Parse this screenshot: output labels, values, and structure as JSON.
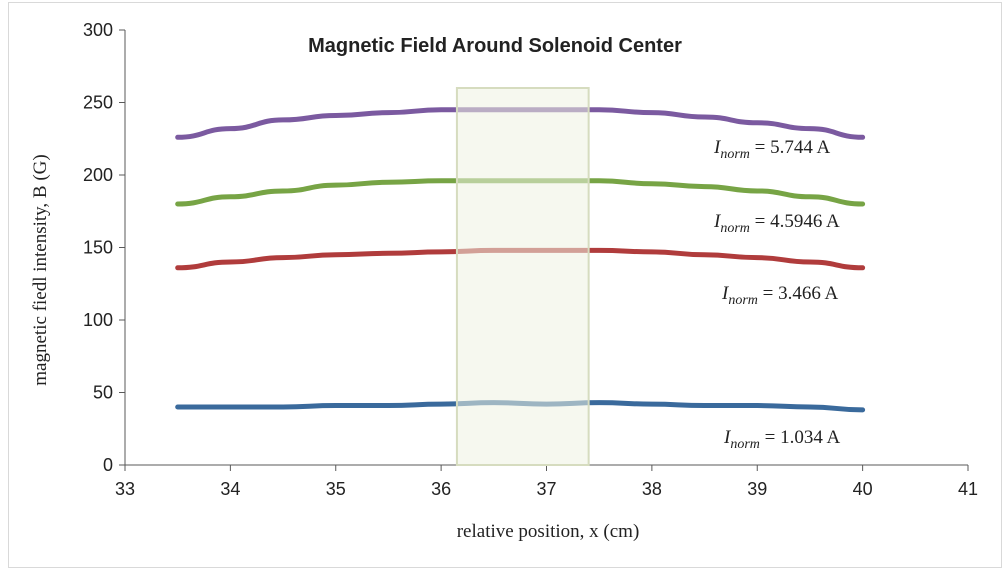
{
  "chart_data": {
    "type": "line",
    "title": "Magnetic Field Around Solenoid Center",
    "xlabel": "relative position,  x (cm)",
    "ylabel": "magnetic fiedl intensity, B (G)",
    "xlim": [
      33,
      41
    ],
    "ylim": [
      0,
      300
    ],
    "xticks": [
      33,
      34,
      35,
      36,
      37,
      38,
      39,
      40,
      41
    ],
    "yticks": [
      0,
      50,
      100,
      150,
      200,
      250,
      300
    ],
    "grid": false,
    "legend": "none",
    "highlight_region": {
      "x": [
        36.15,
        37.4
      ],
      "color": "#eef2e2"
    },
    "series": [
      {
        "name": "Inorm = 5.744 A",
        "label_main": "I",
        "label_sub": "norm",
        "label_value": " = 5.744 A",
        "color": "#7b5aa0",
        "x": [
          33.5,
          34,
          34.5,
          35,
          35.5,
          36,
          36.5,
          37,
          37.5,
          38,
          38.5,
          39,
          39.5,
          40
        ],
        "y": [
          226,
          232,
          238,
          241,
          243,
          245,
          245,
          245,
          245,
          243,
          240,
          236,
          232,
          226
        ]
      },
      {
        "name": "Inorm = 4.5946 A",
        "label_main": "I",
        "label_sub": "norm",
        "label_value": " = 4.5946 A",
        "color": "#77a445",
        "x": [
          33.5,
          34,
          34.5,
          35,
          35.5,
          36,
          36.5,
          37,
          37.5,
          38,
          38.5,
          39,
          39.5,
          40
        ],
        "y": [
          180,
          185,
          189,
          193,
          195,
          196,
          196,
          196,
          196,
          194,
          192,
          189,
          185,
          180
        ]
      },
      {
        "name": "Inorm = 3.466 A",
        "label_main": "I",
        "label_sub": "norm",
        "label_value": " = 3.466 A",
        "color": "#b03c3c",
        "x": [
          33.5,
          34,
          34.5,
          35,
          35.5,
          36,
          36.5,
          37,
          37.5,
          38,
          38.5,
          39,
          39.5,
          40
        ],
        "y": [
          136,
          140,
          143,
          145,
          146,
          147,
          148,
          148,
          148,
          147,
          145,
          143,
          140,
          136
        ]
      },
      {
        "name": "Inorm = 1.034 A",
        "label_main": "I",
        "label_sub": "norm",
        "label_value": " = 1.034 A",
        "color": "#3a6a9c",
        "x": [
          33.5,
          34,
          34.5,
          35,
          35.5,
          36,
          36.5,
          37,
          37.5,
          38,
          38.5,
          39,
          39.5,
          40
        ],
        "y": [
          40,
          40,
          40,
          41,
          41,
          42,
          43,
          42,
          43,
          42,
          41,
          41,
          40,
          38
        ]
      }
    ]
  }
}
